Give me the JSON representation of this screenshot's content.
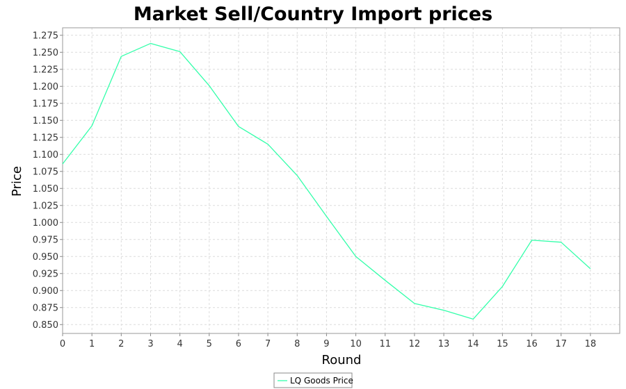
{
  "chart_data": {
    "type": "line",
    "title": "Market Sell/Country Import prices",
    "xlabel": "Round",
    "ylabel": "Price",
    "xlim": [
      0,
      19
    ],
    "ylim": [
      0.837,
      1.286
    ],
    "x_ticks": [
      "0",
      "1",
      "2",
      "3",
      "4",
      "5",
      "6",
      "7",
      "8",
      "9",
      "10",
      "11",
      "12",
      "13",
      "14",
      "15",
      "16",
      "17",
      "18"
    ],
    "y_ticks": [
      "0.850",
      "0.875",
      "0.900",
      "0.925",
      "0.950",
      "0.975",
      "1.000",
      "1.025",
      "1.050",
      "1.075",
      "1.100",
      "1.125",
      "1.150",
      "1.175",
      "1.200",
      "1.225",
      "1.250",
      "1.275"
    ],
    "grid": true,
    "legend_position": "bottom-center",
    "series": [
      {
        "name": "LQ Goods Price",
        "color": "#33ffaa",
        "x": [
          0,
          1,
          2,
          3,
          4,
          5,
          6,
          7,
          8,
          9,
          10,
          11,
          12,
          13,
          14,
          15,
          16,
          17,
          18
        ],
        "values": [
          1.086,
          1.142,
          1.244,
          1.263,
          1.251,
          1.201,
          1.141,
          1.115,
          1.069,
          1.009,
          0.95,
          0.915,
          0.881,
          0.871,
          0.858,
          0.906,
          0.974,
          0.971,
          0.932
        ]
      }
    ]
  }
}
